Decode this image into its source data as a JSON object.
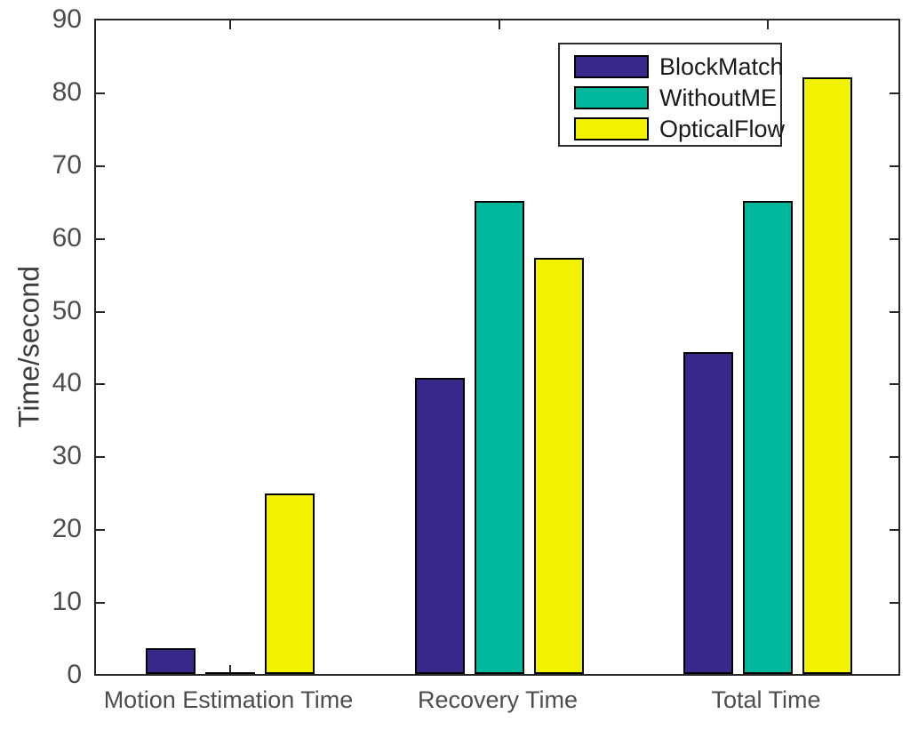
{
  "chart_data": {
    "type": "bar",
    "title": "",
    "xlabel": "",
    "ylabel": "Time/second",
    "ylim": [
      0,
      90
    ],
    "yticks": [
      "0",
      "10",
      "20",
      "30",
      "40",
      "50",
      "60",
      "70",
      "80",
      "90"
    ],
    "grid": false,
    "legend_position": "top-right-inside",
    "categories": [
      "Motion Estimation Time",
      "Recovery Time",
      "Total Time"
    ],
    "series": [
      {
        "name": "BlockMatch",
        "color": "#38288C",
        "values": [
          3.5,
          40.7,
          44.2
        ]
      },
      {
        "name": "WithoutME",
        "color": "#00B79C",
        "values": [
          0,
          65,
          65
        ]
      },
      {
        "name": "OpticalFlow",
        "color": "#F3F200",
        "values": [
          24.8,
          57.2,
          82
        ]
      }
    ],
    "bar_outline_color": "#000000"
  },
  "colors": {
    "axis": "#262626",
    "tick_label": "#4d4d4d",
    "axis_title": "#3d3d3d",
    "legend_text": "#1a1a1a",
    "background": "#ffffff"
  }
}
